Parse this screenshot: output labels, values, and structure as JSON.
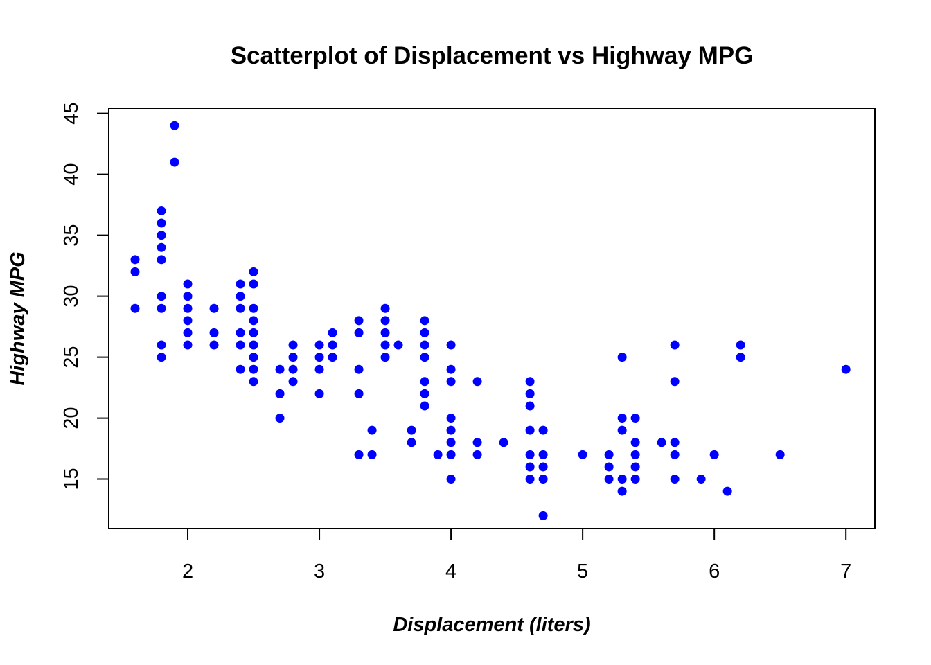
{
  "chart_data": {
    "type": "scatter",
    "title": "Scatterplot of Displacement vs Highway MPG",
    "xlabel": "Displacement (liters)",
    "ylabel": "Highway MPG",
    "xlim": [
      1.4,
      7.22
    ],
    "ylim": [
      10.94,
      45.38
    ],
    "xticks": [
      2,
      3,
      4,
      5,
      6,
      7
    ],
    "yticks": [
      15,
      20,
      25,
      30,
      35,
      40,
      45
    ],
    "grid": false,
    "point_color": "#0000ff",
    "points": [
      [
        1.6,
        33
      ],
      [
        1.6,
        32
      ],
      [
        1.6,
        29
      ],
      [
        1.8,
        37
      ],
      [
        1.8,
        36
      ],
      [
        1.8,
        35
      ],
      [
        1.8,
        34
      ],
      [
        1.8,
        33
      ],
      [
        1.8,
        30
      ],
      [
        1.8,
        29
      ],
      [
        1.8,
        26
      ],
      [
        1.8,
        25
      ],
      [
        1.9,
        44
      ],
      [
        1.9,
        41
      ],
      [
        2.0,
        31
      ],
      [
        2.0,
        30
      ],
      [
        2.0,
        29
      ],
      [
        2.0,
        28
      ],
      [
        2.0,
        27
      ],
      [
        2.0,
        26
      ],
      [
        2.2,
        29
      ],
      [
        2.2,
        27
      ],
      [
        2.2,
        26
      ],
      [
        2.4,
        31
      ],
      [
        2.4,
        30
      ],
      [
        2.4,
        29
      ],
      [
        2.4,
        27
      ],
      [
        2.4,
        26
      ],
      [
        2.4,
        24
      ],
      [
        2.5,
        32
      ],
      [
        2.5,
        31
      ],
      [
        2.5,
        29
      ],
      [
        2.5,
        28
      ],
      [
        2.5,
        27
      ],
      [
        2.5,
        26
      ],
      [
        2.5,
        25
      ],
      [
        2.5,
        24
      ],
      [
        2.5,
        23
      ],
      [
        2.7,
        24
      ],
      [
        2.7,
        22
      ],
      [
        2.7,
        20
      ],
      [
        2.8,
        26
      ],
      [
        2.8,
        25
      ],
      [
        2.8,
        24
      ],
      [
        2.8,
        23
      ],
      [
        3.0,
        26
      ],
      [
        3.0,
        25
      ],
      [
        3.0,
        24
      ],
      [
        3.0,
        22
      ],
      [
        3.1,
        27
      ],
      [
        3.1,
        26
      ],
      [
        3.1,
        25
      ],
      [
        3.3,
        28
      ],
      [
        3.3,
        27
      ],
      [
        3.3,
        24
      ],
      [
        3.3,
        22
      ],
      [
        3.3,
        17
      ],
      [
        3.4,
        19
      ],
      [
        3.4,
        17
      ],
      [
        3.5,
        29
      ],
      [
        3.5,
        28
      ],
      [
        3.5,
        27
      ],
      [
        3.5,
        26
      ],
      [
        3.5,
        25
      ],
      [
        3.6,
        26
      ],
      [
        3.7,
        19
      ],
      [
        3.7,
        18
      ],
      [
        3.8,
        28
      ],
      [
        3.8,
        27
      ],
      [
        3.8,
        26
      ],
      [
        3.8,
        25
      ],
      [
        3.8,
        23
      ],
      [
        3.8,
        22
      ],
      [
        3.8,
        21
      ],
      [
        3.9,
        17
      ],
      [
        4.0,
        26
      ],
      [
        4.0,
        24
      ],
      [
        4.0,
        23
      ],
      [
        4.0,
        20
      ],
      [
        4.0,
        19
      ],
      [
        4.0,
        18
      ],
      [
        4.0,
        17
      ],
      [
        4.0,
        15
      ],
      [
        4.2,
        23
      ],
      [
        4.2,
        18
      ],
      [
        4.2,
        17
      ],
      [
        4.4,
        18
      ],
      [
        4.6,
        23
      ],
      [
        4.6,
        22
      ],
      [
        4.6,
        21
      ],
      [
        4.6,
        19
      ],
      [
        4.6,
        17
      ],
      [
        4.6,
        16
      ],
      [
        4.6,
        15
      ],
      [
        4.7,
        19
      ],
      [
        4.7,
        17
      ],
      [
        4.7,
        16
      ],
      [
        4.7,
        15
      ],
      [
        4.7,
        12
      ],
      [
        5.0,
        17
      ],
      [
        5.2,
        17
      ],
      [
        5.2,
        16
      ],
      [
        5.2,
        15
      ],
      [
        5.3,
        25
      ],
      [
        5.3,
        20
      ],
      [
        5.3,
        19
      ],
      [
        5.3,
        15
      ],
      [
        5.3,
        14
      ],
      [
        5.4,
        20
      ],
      [
        5.4,
        18
      ],
      [
        5.4,
        17
      ],
      [
        5.4,
        16
      ],
      [
        5.4,
        15
      ],
      [
        5.6,
        18
      ],
      [
        5.7,
        26
      ],
      [
        5.7,
        23
      ],
      [
        5.7,
        18
      ],
      [
        5.7,
        17
      ],
      [
        5.7,
        15
      ],
      [
        5.9,
        15
      ],
      [
        6.0,
        17
      ],
      [
        6.1,
        14
      ],
      [
        6.2,
        26
      ],
      [
        6.2,
        25
      ],
      [
        6.5,
        17
      ],
      [
        7.0,
        24
      ]
    ]
  }
}
